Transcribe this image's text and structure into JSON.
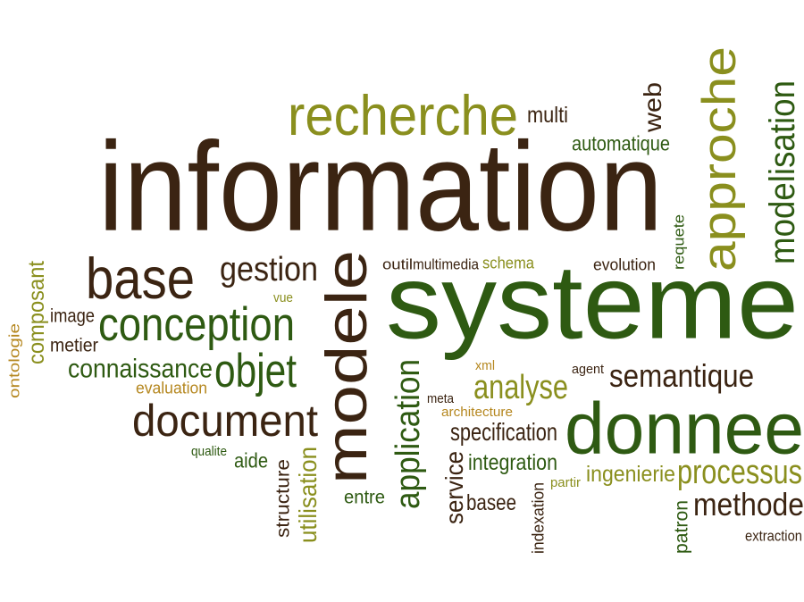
{
  "colors": {
    "dark_brown": "#3b2412",
    "dark_green": "#2e5a12",
    "olive": "#8a8f1e",
    "gold": "#b5871f",
    "background": "#ffffff"
  },
  "words": {
    "information": "information",
    "systeme": "systeme",
    "donnee": "donnee",
    "modele": "modele",
    "approche": "approche",
    "recherche": "recherche",
    "base": "base",
    "conception": "conception",
    "document": "document",
    "objet": "objet",
    "gestion": "gestion",
    "modelisation": "modelisation",
    "application": "application",
    "analyse": "analyse",
    "semantique": "semantique",
    "connaissance": "connaissance",
    "processus": "processus",
    "methode": "methode",
    "specification": "specification",
    "integration": "integration",
    "service": "service",
    "utilisation": "utilisation",
    "web": "web",
    "multi": "multi",
    "automatique": "automatique",
    "ingenierie": "ingenierie",
    "composant": "composant",
    "ontologie": "ontologie",
    "image": "image",
    "metier": "metier",
    "evaluation": "evaluation",
    "aide": "aide",
    "qualite": "qualite",
    "structure": "structure",
    "entre": "entre",
    "basee": "basee",
    "indexation": "indexation",
    "partir": "partir",
    "patron": "patron",
    "extraction": "extraction",
    "requete": "requete",
    "evolution": "evolution",
    "outil": "outil",
    "multimedia": "multimedia",
    "schema": "schema",
    "vue": "vue",
    "xml": "xml",
    "agent": "agent",
    "meta": "meta",
    "architecture": "architecture"
  }
}
